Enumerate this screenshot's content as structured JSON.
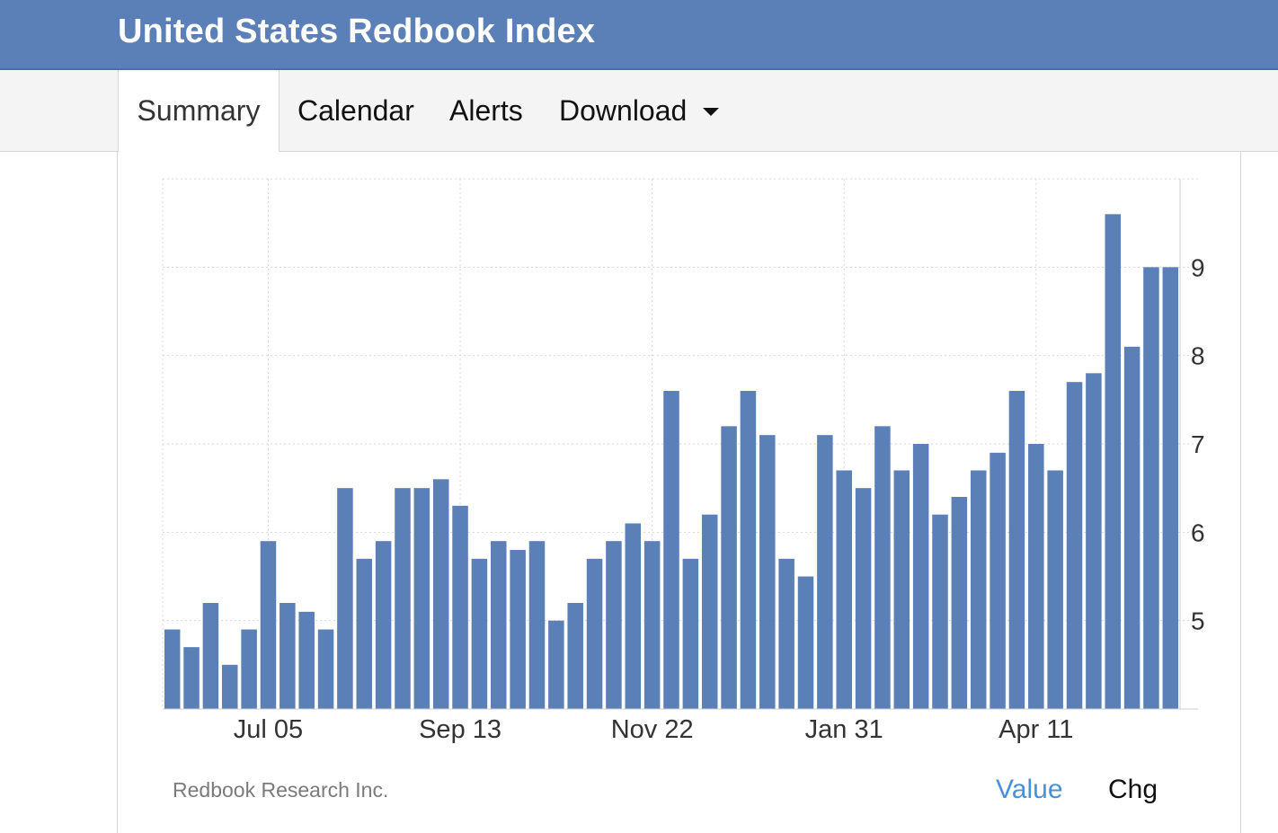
{
  "header": {
    "title": "United States Redbook Index"
  },
  "tabs": [
    {
      "label": "Summary"
    },
    {
      "label": "Calendar"
    },
    {
      "label": "Alerts"
    },
    {
      "label": "Download"
    }
  ],
  "footer": {
    "source": "Redbook Research Inc.",
    "toggle_value": "Value",
    "toggle_chg": "Chg"
  },
  "colors": {
    "header_bg": "#5b7fb7",
    "bar": "#5b7fb7",
    "active_toggle": "#4a90d9"
  },
  "chart_data": {
    "type": "bar",
    "title": "",
    "xlabel": "",
    "ylabel": "",
    "ylim": [
      4.0,
      10.0
    ],
    "y_ticks": [
      5,
      6,
      7,
      8,
      9
    ],
    "y_axis_position": "right",
    "grid": true,
    "x_tick_labels": [
      {
        "label": "Jul 05",
        "index": 5
      },
      {
        "label": "Sep 13",
        "index": 15
      },
      {
        "label": "Nov 22",
        "index": 25
      },
      {
        "label": "Jan 31",
        "index": 35
      },
      {
        "label": "Apr 11",
        "index": 45
      }
    ],
    "series": [
      {
        "values": [
          4.9,
          4.7,
          5.2,
          4.5,
          4.9,
          5.9,
          5.2,
          5.1,
          4.9,
          6.5,
          5.7,
          5.9,
          6.5,
          6.5,
          6.6,
          6.3,
          5.7,
          5.9,
          5.8,
          5.9,
          5.0,
          5.2,
          5.7,
          5.9,
          6.1,
          5.9,
          7.6,
          5.7,
          6.2,
          7.2,
          7.6,
          7.1,
          5.7,
          5.5,
          7.1,
          6.7,
          6.5,
          7.2,
          6.7,
          7.0,
          6.2,
          6.4,
          6.7,
          6.9,
          7.6,
          7.0,
          6.7,
          7.7,
          7.8,
          9.6,
          8.1,
          9.0,
          9.0
        ]
      }
    ]
  }
}
